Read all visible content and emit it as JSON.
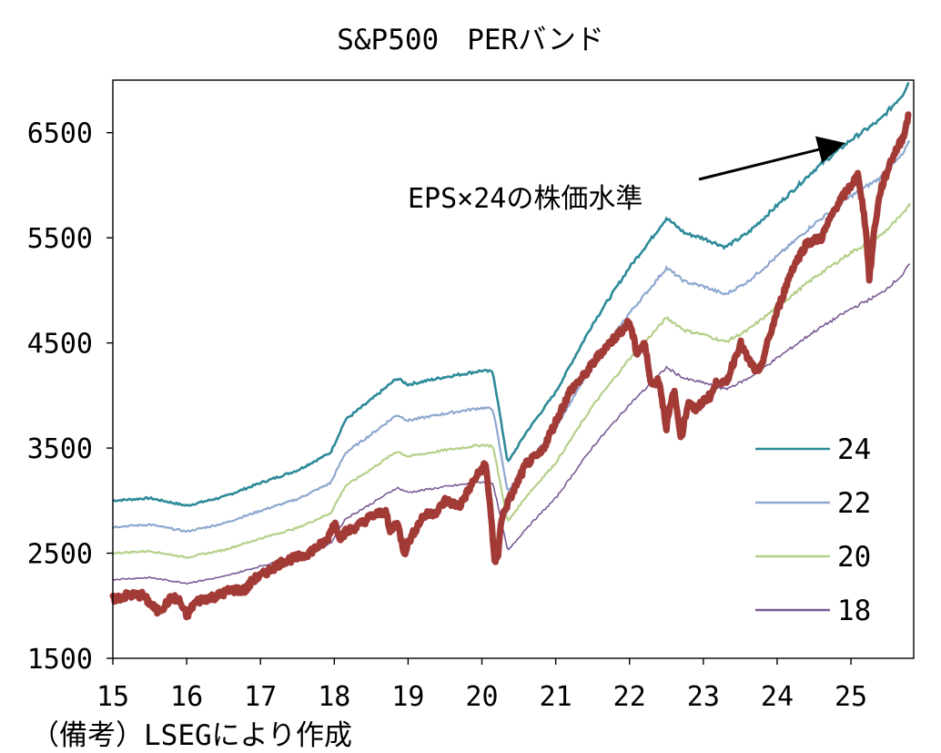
{
  "colors": {
    "band24": "#2e8a9a",
    "band22": "#8ea8cf",
    "band20": "#b5d08a",
    "band18": "#7a5a95",
    "price": "#a23a36",
    "axis": "#000000"
  },
  "chart_data": {
    "type": "line",
    "title": "S&P500　PERバンド",
    "note": "（備考）LSEGにより作成",
    "xlabel": "",
    "ylabel": "",
    "xlim": [
      2015,
      2025.85
    ],
    "ylim": [
      1500,
      7000
    ],
    "y_ticks": [
      1500,
      2500,
      3500,
      4500,
      5500,
      6500
    ],
    "y_tick_labels": [
      "1500",
      "2500",
      "3500",
      "4500",
      "5500",
      "6500"
    ],
    "x_ticks": [
      2015,
      2016,
      2017,
      2018,
      2019,
      2020,
      2021,
      2022,
      2023,
      2024,
      2025
    ],
    "x_tick_labels": [
      "15",
      "16",
      "17",
      "18",
      "19",
      "20",
      "21",
      "22",
      "23",
      "24",
      "25"
    ],
    "annotation": {
      "text": "EPS×24の株価水準",
      "points_to": {
        "x": 2024.85,
        "y": 6390
      }
    },
    "legend": {
      "placement": "right",
      "entries": [
        "24",
        "22",
        "20",
        "18"
      ]
    },
    "eps_base": {
      "x": [
        2015.0,
        2015.5,
        2016.0,
        2016.5,
        2017.0,
        2017.5,
        2017.95,
        2018.15,
        2018.5,
        2018.85,
        2019.0,
        2019.5,
        2020.0,
        2020.15,
        2020.35,
        2020.6,
        2021.0,
        2021.5,
        2022.0,
        2022.3,
        2022.5,
        2022.75,
        2023.0,
        2023.3,
        2023.6,
        2024.0,
        2024.5,
        2025.0,
        2025.4,
        2025.7,
        2025.8
      ],
      "y": [
        125.0,
        126.0,
        123.0,
        126.5,
        132.0,
        137.0,
        144.0,
        157.0,
        165.0,
        173.5,
        171.0,
        174.0,
        176.5,
        176.0,
        140.0,
        152.0,
        168.0,
        195.0,
        217.5,
        229.0,
        237.0,
        231.0,
        229.0,
        225.5,
        231.0,
        242.0,
        256.0,
        268.0,
        276.0,
        286.0,
        292.0
      ]
    },
    "series": [
      {
        "name": "24",
        "multiple": 24,
        "values_note": "EPS × 24",
        "legend_color_key": "band24"
      },
      {
        "name": "22",
        "multiple": 22,
        "values_note": "EPS × 22",
        "legend_color_key": "band22"
      },
      {
        "name": "20",
        "multiple": 20,
        "values_note": "EPS × 20",
        "legend_color_key": "band20"
      },
      {
        "name": "18",
        "multiple": 18,
        "values_note": "EPS × 18",
        "legend_color_key": "band18"
      },
      {
        "name": "S&P500",
        "x": [
          2015.0,
          2015.2,
          2015.4,
          2015.6,
          2015.7,
          2015.8,
          2015.9,
          2016.0,
          2016.1,
          2016.2,
          2016.4,
          2016.6,
          2016.8,
          2016.9,
          2017.0,
          2017.3,
          2017.6,
          2017.9,
          2018.0,
          2018.08,
          2018.15,
          2018.3,
          2018.5,
          2018.7,
          2018.75,
          2018.85,
          2018.95,
          2019.0,
          2019.2,
          2019.4,
          2019.5,
          2019.7,
          2019.9,
          2020.05,
          2020.12,
          2020.17,
          2020.22,
          2020.25,
          2020.3,
          2020.4,
          2020.6,
          2020.8,
          2021.0,
          2021.2,
          2021.4,
          2021.6,
          2021.8,
          2022.0,
          2022.1,
          2022.2,
          2022.3,
          2022.4,
          2022.5,
          2022.6,
          2022.7,
          2022.8,
          2022.9,
          2023.0,
          2023.1,
          2023.2,
          2023.3,
          2023.5,
          2023.6,
          2023.75,
          2023.85,
          2024.0,
          2024.2,
          2024.4,
          2024.6,
          2024.8,
          2025.0,
          2025.1,
          2025.2,
          2025.25,
          2025.32,
          2025.4,
          2025.55,
          2025.7,
          2025.78
        ],
        "y": [
          2060,
          2100,
          2100,
          1950,
          2000,
          2080,
          2050,
          1900,
          2020,
          2060,
          2090,
          2150,
          2150,
          2250,
          2280,
          2420,
          2480,
          2620,
          2800,
          2650,
          2700,
          2750,
          2850,
          2900,
          2700,
          2800,
          2500,
          2600,
          2850,
          2900,
          3000,
          2950,
          3200,
          3350,
          2900,
          2400,
          2500,
          2750,
          2900,
          3050,
          3350,
          3450,
          3750,
          4050,
          4200,
          4400,
          4550,
          4700,
          4400,
          4500,
          4100,
          4150,
          3700,
          4050,
          3600,
          3950,
          3850,
          3950,
          4000,
          4150,
          4100,
          4500,
          4350,
          4200,
          4450,
          4800,
          5200,
          5450,
          5500,
          5800,
          6000,
          6100,
          5600,
          5100,
          5600,
          5950,
          6250,
          6450,
          6650
        ]
      }
    ]
  }
}
